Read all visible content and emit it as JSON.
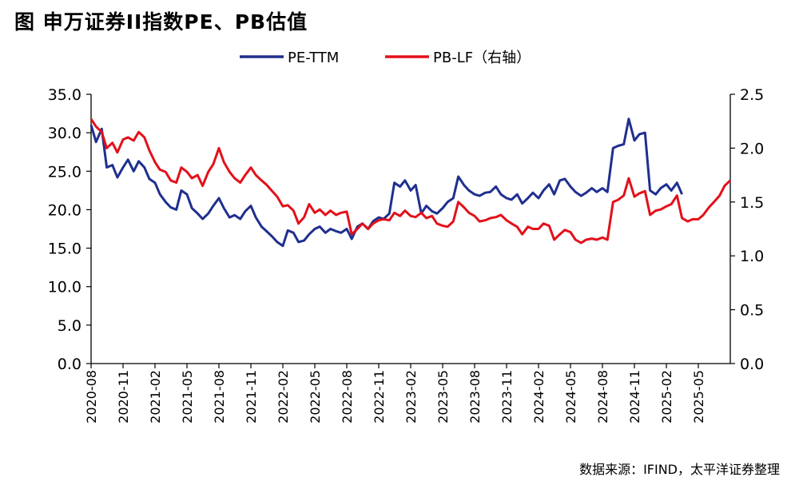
{
  "title": "图 申万证券II指数PE、PB估值",
  "source": "数据来源：IFIND，太平洋证券整理",
  "colors": {
    "pe": "#1f2f8f",
    "pb": "#e3101a",
    "axis": "#000000"
  },
  "chart_data": {
    "type": "line",
    "title": "图 申万证券II指数PE、PB估值",
    "x_tick_labels": [
      "2020-08",
      "2020-11",
      "2021-02",
      "2021-05",
      "2021-08",
      "2021-11",
      "2022-02",
      "2022-05",
      "2022-08",
      "2022-11",
      "2023-02",
      "2023-05",
      "2023-08",
      "2023-11",
      "2024-02",
      "2024-05",
      "2024-08",
      "2024-11",
      "2025-02",
      "2025-05"
    ],
    "x_range": [
      "2020-08",
      "2025-08"
    ],
    "left_axis": {
      "range": [
        0,
        35
      ],
      "ticks": [
        "0.0",
        "5.0",
        "10.0",
        "15.0",
        "20.0",
        "25.0",
        "30.0",
        "35.0"
      ]
    },
    "right_axis": {
      "range": [
        0,
        2.5
      ],
      "ticks": [
        "0.0",
        "0.5",
        "1.0",
        "1.5",
        "2.0",
        "2.5"
      ]
    },
    "legend_position": "top-center",
    "series": [
      {
        "name": "PE-TTM",
        "axis": "left",
        "points": [
          [
            "2020-08",
            31.0
          ],
          [
            "2020-08-15",
            28.8
          ],
          [
            "2020-09",
            30.5
          ],
          [
            "2020-09-15",
            25.5
          ],
          [
            "2020-10",
            25.8
          ],
          [
            "2020-10-15",
            24.2
          ],
          [
            "2020-11",
            25.5
          ],
          [
            "2020-11-15",
            26.5
          ],
          [
            "2020-12",
            25.0
          ],
          [
            "2020-12-15",
            26.3
          ],
          [
            "2021-01",
            25.5
          ],
          [
            "2021-01-15",
            24.0
          ],
          [
            "2021-02",
            23.5
          ],
          [
            "2021-02-15",
            22.0
          ],
          [
            "2021-03",
            21.0
          ],
          [
            "2021-03-15",
            20.3
          ],
          [
            "2021-04",
            20.0
          ],
          [
            "2021-04-15",
            22.5
          ],
          [
            "2021-05",
            22.0
          ],
          [
            "2021-05-15",
            20.2
          ],
          [
            "2021-06",
            19.5
          ],
          [
            "2021-06-15",
            18.8
          ],
          [
            "2021-07",
            19.5
          ],
          [
            "2021-07-15",
            20.5
          ],
          [
            "2021-08",
            21.5
          ],
          [
            "2021-08-15",
            20.2
          ],
          [
            "2021-09",
            19.0
          ],
          [
            "2021-09-15",
            19.3
          ],
          [
            "2021-10",
            18.8
          ],
          [
            "2021-10-15",
            19.8
          ],
          [
            "2021-11",
            20.5
          ],
          [
            "2021-11-15",
            19.0
          ],
          [
            "2021-12",
            17.8
          ],
          [
            "2021-12-15",
            17.2
          ],
          [
            "2022-01",
            16.5
          ],
          [
            "2022-01-15",
            15.8
          ],
          [
            "2022-02",
            15.3
          ],
          [
            "2022-02-15",
            17.3
          ],
          [
            "2022-03",
            17.0
          ],
          [
            "2022-03-15",
            15.8
          ],
          [
            "2022-04",
            16.0
          ],
          [
            "2022-04-15",
            16.8
          ],
          [
            "2022-05",
            17.5
          ],
          [
            "2022-05-15",
            17.8
          ],
          [
            "2022-06",
            17.0
          ],
          [
            "2022-06-15",
            17.5
          ],
          [
            "2022-07",
            17.2
          ],
          [
            "2022-07-15",
            17.0
          ],
          [
            "2022-08",
            17.5
          ],
          [
            "2022-08-15",
            16.2
          ],
          [
            "2022-09",
            17.8
          ],
          [
            "2022-09-15",
            18.2
          ],
          [
            "2022-10",
            17.5
          ],
          [
            "2022-10-15",
            18.5
          ],
          [
            "2022-11",
            19.0
          ],
          [
            "2022-11-15",
            18.8
          ],
          [
            "2022-12",
            19.5
          ],
          [
            "2022-12-15",
            23.5
          ],
          [
            "2023-01",
            23.0
          ],
          [
            "2023-01-15",
            23.8
          ],
          [
            "2023-02",
            22.5
          ],
          [
            "2023-02-15",
            23.2
          ],
          [
            "2023-03",
            19.5
          ],
          [
            "2023-03-15",
            20.5
          ],
          [
            "2023-04",
            19.8
          ],
          [
            "2023-04-15",
            19.5
          ],
          [
            "2023-05",
            20.2
          ],
          [
            "2023-05-15",
            21.0
          ],
          [
            "2023-06",
            21.5
          ],
          [
            "2023-06-15",
            24.3
          ],
          [
            "2023-07",
            23.2
          ],
          [
            "2023-07-15",
            22.5
          ],
          [
            "2023-08",
            22.0
          ],
          [
            "2023-08-15",
            21.8
          ],
          [
            "2023-09",
            22.2
          ],
          [
            "2023-09-15",
            22.3
          ],
          [
            "2023-10",
            23.0
          ],
          [
            "2023-10-15",
            22.0
          ],
          [
            "2023-11",
            21.5
          ],
          [
            "2023-11-15",
            21.3
          ],
          [
            "2023-12",
            22.0
          ],
          [
            "2023-12-15",
            20.8
          ],
          [
            "2024-01",
            21.5
          ],
          [
            "2024-01-15",
            22.2
          ],
          [
            "2024-02",
            21.5
          ],
          [
            "2024-02-15",
            22.5
          ],
          [
            "2024-03",
            23.3
          ],
          [
            "2024-03-15",
            22.0
          ],
          [
            "2024-04",
            23.8
          ],
          [
            "2024-04-15",
            24.0
          ],
          [
            "2024-05",
            23.0
          ],
          [
            "2024-05-15",
            22.3
          ],
          [
            "2024-06",
            21.8
          ],
          [
            "2024-06-15",
            22.2
          ],
          [
            "2024-07",
            22.8
          ],
          [
            "2024-07-15",
            22.3
          ],
          [
            "2024-08",
            22.8
          ],
          [
            "2024-08-15",
            22.3
          ],
          [
            "2024-09",
            28.0
          ],
          [
            "2024-09-15",
            28.3
          ],
          [
            "2024-10",
            28.5
          ],
          [
            "2024-10-15",
            31.8
          ],
          [
            "2024-11",
            29.0
          ],
          [
            "2024-11-15",
            29.8
          ],
          [
            "2024-12",
            30.0
          ],
          [
            "2024-12-15",
            22.5
          ],
          [
            "2025-01",
            22.0
          ],
          [
            "2025-01-15",
            22.8
          ],
          [
            "2025-02",
            23.3
          ],
          [
            "2025-02-15",
            22.5
          ],
          [
            "2025-03",
            23.5
          ],
          [
            "2025-03-15",
            22.0
          ]
        ]
      },
      {
        "name": "PB-LF（右轴）",
        "axis": "right",
        "points": [
          [
            "2020-08",
            2.27
          ],
          [
            "2020-08-15",
            2.2
          ],
          [
            "2020-09",
            2.15
          ],
          [
            "2020-09-15",
            2.0
          ],
          [
            "2020-10",
            2.05
          ],
          [
            "2020-10-15",
            1.96
          ],
          [
            "2020-11",
            2.08
          ],
          [
            "2020-11-15",
            2.1
          ],
          [
            "2020-12",
            2.07
          ],
          [
            "2020-12-15",
            2.15
          ],
          [
            "2021-01",
            2.1
          ],
          [
            "2021-01-15",
            1.98
          ],
          [
            "2021-02",
            1.87
          ],
          [
            "2021-02-15",
            1.8
          ],
          [
            "2021-03",
            1.78
          ],
          [
            "2021-03-15",
            1.7
          ],
          [
            "2021-04",
            1.68
          ],
          [
            "2021-04-15",
            1.82
          ],
          [
            "2021-05",
            1.78
          ],
          [
            "2021-05-15",
            1.72
          ],
          [
            "2021-06",
            1.75
          ],
          [
            "2021-06-15",
            1.65
          ],
          [
            "2021-07",
            1.78
          ],
          [
            "2021-07-15",
            1.85
          ],
          [
            "2021-08",
            2.0
          ],
          [
            "2021-08-15",
            1.87
          ],
          [
            "2021-09",
            1.78
          ],
          [
            "2021-09-15",
            1.72
          ],
          [
            "2021-10",
            1.68
          ],
          [
            "2021-10-15",
            1.75
          ],
          [
            "2021-11",
            1.82
          ],
          [
            "2021-11-15",
            1.75
          ],
          [
            "2021-12",
            1.7
          ],
          [
            "2021-12-15",
            1.66
          ],
          [
            "2022-01",
            1.6
          ],
          [
            "2022-01-15",
            1.55
          ],
          [
            "2022-02",
            1.46
          ],
          [
            "2022-02-15",
            1.47
          ],
          [
            "2022-03",
            1.42
          ],
          [
            "2022-03-15",
            1.3
          ],
          [
            "2022-04",
            1.36
          ],
          [
            "2022-04-15",
            1.48
          ],
          [
            "2022-05",
            1.4
          ],
          [
            "2022-05-15",
            1.43
          ],
          [
            "2022-06",
            1.38
          ],
          [
            "2022-06-15",
            1.42
          ],
          [
            "2022-07",
            1.38
          ],
          [
            "2022-07-15",
            1.4
          ],
          [
            "2022-08",
            1.41
          ],
          [
            "2022-08-15",
            1.2
          ],
          [
            "2022-09",
            1.25
          ],
          [
            "2022-09-15",
            1.3
          ],
          [
            "2022-10",
            1.25
          ],
          [
            "2022-10-15",
            1.3
          ],
          [
            "2022-11",
            1.33
          ],
          [
            "2022-11-15",
            1.34
          ],
          [
            "2022-12",
            1.33
          ],
          [
            "2022-12-15",
            1.4
          ],
          [
            "2023-01",
            1.37
          ],
          [
            "2023-01-15",
            1.42
          ],
          [
            "2023-02",
            1.37
          ],
          [
            "2023-02-15",
            1.36
          ],
          [
            "2023-03",
            1.4
          ],
          [
            "2023-03-15",
            1.35
          ],
          [
            "2023-04",
            1.37
          ],
          [
            "2023-04-15",
            1.3
          ],
          [
            "2023-05",
            1.28
          ],
          [
            "2023-05-15",
            1.27
          ],
          [
            "2023-06",
            1.32
          ],
          [
            "2023-06-15",
            1.5
          ],
          [
            "2023-07",
            1.45
          ],
          [
            "2023-07-15",
            1.4
          ],
          [
            "2023-08",
            1.37
          ],
          [
            "2023-08-15",
            1.32
          ],
          [
            "2023-09",
            1.33
          ],
          [
            "2023-09-15",
            1.35
          ],
          [
            "2023-10",
            1.36
          ],
          [
            "2023-10-15",
            1.38
          ],
          [
            "2023-11",
            1.33
          ],
          [
            "2023-11-15",
            1.3
          ],
          [
            "2023-12",
            1.27
          ],
          [
            "2023-12-15",
            1.2
          ],
          [
            "2024-01",
            1.27
          ],
          [
            "2024-01-15",
            1.25
          ],
          [
            "2024-02",
            1.25
          ],
          [
            "2024-02-15",
            1.3
          ],
          [
            "2024-03",
            1.28
          ],
          [
            "2024-03-15",
            1.15
          ],
          [
            "2024-04",
            1.2
          ],
          [
            "2024-04-15",
            1.24
          ],
          [
            "2024-05",
            1.22
          ],
          [
            "2024-05-15",
            1.15
          ],
          [
            "2024-06",
            1.12
          ],
          [
            "2024-06-15",
            1.15
          ],
          [
            "2024-07",
            1.16
          ],
          [
            "2024-07-15",
            1.15
          ],
          [
            "2024-08",
            1.17
          ],
          [
            "2024-08-15",
            1.15
          ],
          [
            "2024-09",
            1.5
          ],
          [
            "2024-09-15",
            1.52
          ],
          [
            "2024-10",
            1.56
          ],
          [
            "2024-10-15",
            1.72
          ],
          [
            "2024-11",
            1.55
          ],
          [
            "2024-11-15",
            1.58
          ],
          [
            "2024-12",
            1.6
          ],
          [
            "2024-12-15",
            1.38
          ],
          [
            "2025-01",
            1.42
          ],
          [
            "2025-01-15",
            1.43
          ],
          [
            "2025-02",
            1.46
          ],
          [
            "2025-02-15",
            1.48
          ],
          [
            "2025-03",
            1.56
          ],
          [
            "2025-03-15",
            1.35
          ],
          [
            "2025-04",
            1.32
          ],
          [
            "2025-04-15",
            1.34
          ],
          [
            "2025-05",
            1.34
          ],
          [
            "2025-05-15",
            1.38
          ],
          [
            "2025-06",
            1.45
          ],
          [
            "2025-06-15",
            1.5
          ],
          [
            "2025-07",
            1.56
          ],
          [
            "2025-07-15",
            1.65
          ],
          [
            "2025-08",
            1.7
          ]
        ]
      }
    ]
  }
}
